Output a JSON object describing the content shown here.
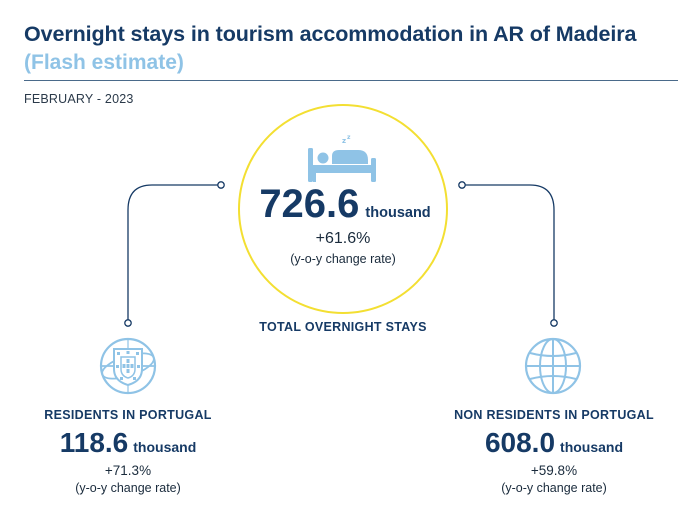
{
  "header": {
    "title": "Overnight stays in tourism accommodation in AR of Madeira",
    "subtitle": "(Flash estimate)",
    "period": "FEBRUARY - 2023"
  },
  "colors": {
    "navy": "#163a65",
    "light_blue": "#8fc3e6",
    "yellow_ring": "#f3df32"
  },
  "total": {
    "icon": "bed-icon",
    "value": "726.6",
    "unit": "thousand",
    "rate": "+61.6%",
    "rate_note": "(y-o-y change rate)",
    "label": "TOTAL OVERNIGHT STAYS"
  },
  "residents": {
    "icon": "portugal-coat-of-arms-icon",
    "label": "RESIDENTS IN PORTUGAL",
    "value": "118.6",
    "unit": "thousand",
    "rate": "+71.3%",
    "rate_note": "(y-o-y change rate)"
  },
  "non_residents": {
    "icon": "globe-icon",
    "label": "NON RESIDENTS IN PORTUGAL",
    "value": "608.0",
    "unit": "thousand",
    "rate": "+59.8%",
    "rate_note": "(y-o-y change rate)"
  }
}
